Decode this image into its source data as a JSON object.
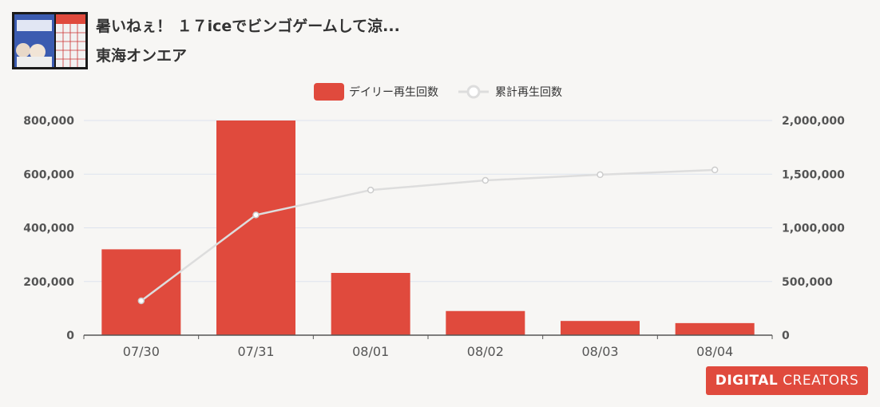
{
  "header": {
    "title": "暑いねぇ！ １７iceでビンゴゲームして涼...",
    "channel": "東海オンエア"
  },
  "thumbnail": {
    "icon": "video-thumbnail"
  },
  "brand": {
    "logo_part1": "DIGITAL",
    "logo_part2": "CREATORS",
    "color": "#e04a3d"
  },
  "chart_data": {
    "type": "bar",
    "categories": [
      "07/30",
      "07/31",
      "08/01",
      "08/02",
      "08/03",
      "08/04"
    ],
    "series": [
      {
        "name": "デイリー再生回数",
        "type": "bar",
        "axis": "left",
        "color": "#e04a3d",
        "values": [
          320000,
          800000,
          232000,
          90000,
          53000,
          45000
        ]
      },
      {
        "name": "累計再生回数",
        "type": "line",
        "axis": "right",
        "color": "#dddddd",
        "values": [
          320000,
          1120000,
          1352000,
          1442000,
          1495000,
          1540000
        ]
      }
    ],
    "y_left": {
      "min": 0,
      "max": 800000,
      "ticks": [
        "0",
        "200,000",
        "400,000",
        "600,000",
        "800,000"
      ]
    },
    "y_right": {
      "min": 0,
      "max": 2000000,
      "ticks": [
        "0",
        "500,000",
        "1,000,000",
        "1,500,000",
        "2,000,000"
      ]
    },
    "grid": true,
    "legend_position": "top-center"
  }
}
